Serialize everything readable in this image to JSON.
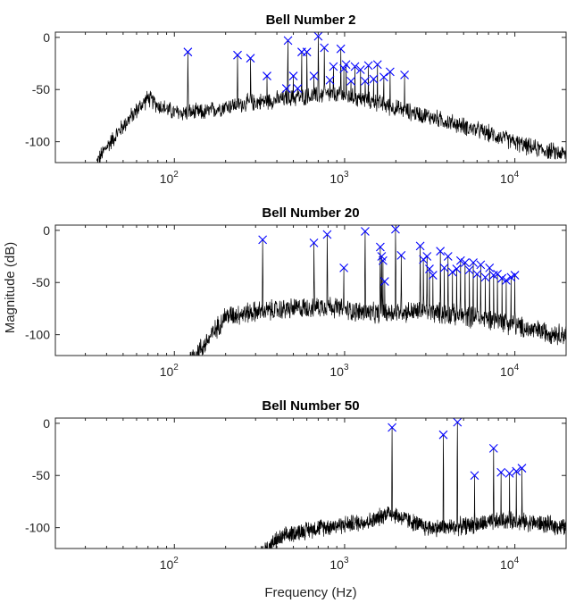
{
  "chart_data": {
    "type": "line",
    "xlabel": "Frequency (Hz)",
    "ylabel": "Magnitude (dB)",
    "xscale": "log",
    "xlim": [
      20,
      20000
    ],
    "ylim": [
      -120,
      5
    ],
    "xticks": [
      {
        "value": 100,
        "base": "10",
        "exp": "2"
      },
      {
        "value": 1000,
        "base": "10",
        "exp": "3"
      },
      {
        "value": 10000,
        "base": "10",
        "exp": "4"
      }
    ],
    "yticks": [
      {
        "value": 0,
        "label": "0"
      },
      {
        "value": -50,
        "label": "-50"
      },
      {
        "value": -100,
        "label": "-100"
      }
    ],
    "grid": false,
    "marker_color": "#0000ff",
    "line_color": "#000000",
    "panels": [
      {
        "title": "Bell Number 2",
        "noise_floor": [
          [
            35,
            -120
          ],
          [
            40,
            -105
          ],
          [
            50,
            -85
          ],
          [
            60,
            -70
          ],
          [
            70,
            -58
          ],
          [
            80,
            -65
          ],
          [
            100,
            -72
          ],
          [
            150,
            -72
          ],
          [
            200,
            -66
          ],
          [
            300,
            -62
          ],
          [
            500,
            -58
          ],
          [
            800,
            -55
          ],
          [
            1000,
            -56
          ],
          [
            1500,
            -62
          ],
          [
            2000,
            -68
          ],
          [
            3000,
            -75
          ],
          [
            5000,
            -85
          ],
          [
            8000,
            -95
          ],
          [
            12000,
            -105
          ],
          [
            20000,
            -112
          ]
        ],
        "noise_amp": 10,
        "peaks": [
          {
            "f": 120,
            "db": -14
          },
          {
            "f": 235,
            "db": -17
          },
          {
            "f": 280,
            "db": -20
          },
          {
            "f": 350,
            "db": -37
          },
          {
            "f": 455,
            "db": -49
          },
          {
            "f": 465,
            "db": -3
          },
          {
            "f": 500,
            "db": -37
          },
          {
            "f": 530,
            "db": -49
          },
          {
            "f": 560,
            "db": -14
          },
          {
            "f": 600,
            "db": -14
          },
          {
            "f": 660,
            "db": -37
          },
          {
            "f": 700,
            "db": 1
          },
          {
            "f": 760,
            "db": -10
          },
          {
            "f": 820,
            "db": -41
          },
          {
            "f": 860,
            "db": -28
          },
          {
            "f": 950,
            "db": -11
          },
          {
            "f": 990,
            "db": -30
          },
          {
            "f": 1020,
            "db": -26
          },
          {
            "f": 1090,
            "db": -42
          },
          {
            "f": 1150,
            "db": -28
          },
          {
            "f": 1240,
            "db": -31
          },
          {
            "f": 1320,
            "db": -42
          },
          {
            "f": 1380,
            "db": -27
          },
          {
            "f": 1480,
            "db": -40
          },
          {
            "f": 1560,
            "db": -26
          },
          {
            "f": 1700,
            "db": -38
          },
          {
            "f": 1850,
            "db": -33
          },
          {
            "f": 2250,
            "db": -36
          }
        ]
      },
      {
        "title": "Bell Number 20",
        "noise_floor": [
          [
            120,
            -125
          ],
          [
            150,
            -110
          ],
          [
            180,
            -92
          ],
          [
            200,
            -82
          ],
          [
            300,
            -78
          ],
          [
            500,
            -75
          ],
          [
            800,
            -72
          ],
          [
            1000,
            -76
          ],
          [
            1500,
            -80
          ],
          [
            2000,
            -78
          ],
          [
            3000,
            -78
          ],
          [
            5000,
            -82
          ],
          [
            8000,
            -86
          ],
          [
            12000,
            -95
          ],
          [
            20000,
            -100
          ]
        ],
        "noise_amp": 12,
        "peaks": [
          {
            "f": 330,
            "db": -9
          },
          {
            "f": 660,
            "db": -12
          },
          {
            "f": 790,
            "db": -4
          },
          {
            "f": 990,
            "db": -36
          },
          {
            "f": 1320,
            "db": -1
          },
          {
            "f": 1620,
            "db": -16
          },
          {
            "f": 1650,
            "db": -25
          },
          {
            "f": 1680,
            "db": -29
          },
          {
            "f": 1720,
            "db": -49
          },
          {
            "f": 1990,
            "db": 1
          },
          {
            "f": 2150,
            "db": -24
          },
          {
            "f": 2780,
            "db": -15
          },
          {
            "f": 2900,
            "db": -28
          },
          {
            "f": 3050,
            "db": -25
          },
          {
            "f": 3150,
            "db": -37
          },
          {
            "f": 3300,
            "db": -43
          },
          {
            "f": 3650,
            "db": -20
          },
          {
            "f": 3850,
            "db": -36
          },
          {
            "f": 4050,
            "db": -25
          },
          {
            "f": 4300,
            "db": -40
          },
          {
            "f": 4550,
            "db": -37
          },
          {
            "f": 4800,
            "db": -29
          },
          {
            "f": 5100,
            "db": -31
          },
          {
            "f": 5400,
            "db": -38
          },
          {
            "f": 5700,
            "db": -31
          },
          {
            "f": 6000,
            "db": -42
          },
          {
            "f": 6300,
            "db": -33
          },
          {
            "f": 6700,
            "db": -45
          },
          {
            "f": 7100,
            "db": -36
          },
          {
            "f": 7500,
            "db": -43
          },
          {
            "f": 7900,
            "db": -42
          },
          {
            "f": 8400,
            "db": -46
          },
          {
            "f": 8900,
            "db": -48
          },
          {
            "f": 9500,
            "db": -45
          },
          {
            "f": 10000,
            "db": -43
          }
        ]
      },
      {
        "title": "Bell Number 50",
        "noise_floor": [
          [
            320,
            -125
          ],
          [
            400,
            -112
          ],
          [
            500,
            -105
          ],
          [
            700,
            -100
          ],
          [
            1000,
            -97
          ],
          [
            1500,
            -93
          ],
          [
            1800,
            -85
          ],
          [
            2000,
            -88
          ],
          [
            3000,
            -100
          ],
          [
            4000,
            -100
          ],
          [
            6000,
            -97
          ],
          [
            9000,
            -93
          ],
          [
            14000,
            -96
          ],
          [
            20000,
            -100
          ]
        ],
        "noise_amp": 10,
        "peaks": [
          {
            "f": 1900,
            "db": -4
          },
          {
            "f": 3800,
            "db": -11
          },
          {
            "f": 4600,
            "db": 1
          },
          {
            "f": 5800,
            "db": -50
          },
          {
            "f": 7500,
            "db": -24
          },
          {
            "f": 8300,
            "db": -47
          },
          {
            "f": 9300,
            "db": -48
          },
          {
            "f": 10200,
            "db": -46
          },
          {
            "f": 11000,
            "db": -43
          }
        ]
      }
    ]
  }
}
